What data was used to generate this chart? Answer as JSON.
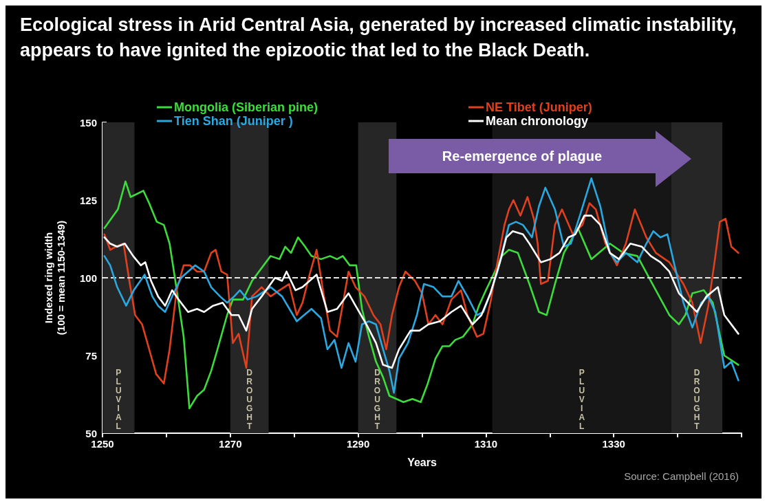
{
  "chart_data": {
    "type": "line",
    "title": "Ecological stress in Arid Central Asia, generated by increased climatic instability, appears to have ignited the epizootic that led to the Black Death.",
    "xlabel": "Years",
    "ylabel": "Indexed ring width\n(100 = mean 1150-1349)",
    "xlim": [
      1250,
      1350
    ],
    "xticks": [
      1250,
      {
        "value": 1260,
        "label": null
      },
      1270,
      {
        "value": 1280,
        "label": null
      },
      1290,
      {
        "value": 1300,
        "label": null
      },
      1310,
      {
        "value": 1320,
        "label": null
      },
      1330,
      {
        "value": 1340,
        "label": null
      },
      {
        "value": 1350,
        "label": null
      }
    ],
    "ylim": [
      50,
      150
    ],
    "yticks": [
      50,
      75,
      100,
      125,
      150
    ],
    "grid": false,
    "legend": "top",
    "series": [
      {
        "name": "Mongolia (Siberian pine)",
        "color": "#3ddc3d",
        "x": [
          1250.3,
          1252.4,
          1253.6,
          1254.4,
          1256.4,
          1257.3,
          1258.5,
          1259.6,
          1260.5,
          1261.4,
          1262.7,
          1263.6,
          1264.8,
          1265.9,
          1267,
          1268,
          1269.5,
          1270.4,
          1272,
          1273.4,
          1276.3,
          1277.7,
          1278.6,
          1279.5,
          1280.6,
          1281.7,
          1282.7,
          1284.2,
          1285.6,
          1286.7,
          1287.6,
          1288.7,
          1289.7,
          1290.6,
          1291.7,
          1292.8,
          1293.9,
          1294.9,
          1296,
          1297.1,
          1298.5,
          1299.8,
          1300.9,
          1302.1,
          1303.2,
          1304.3,
          1305.2,
          1306.4,
          1307.9,
          1308.9,
          1310,
          1311.4,
          1312.5,
          1313.6,
          1315,
          1316.8,
          1318.3,
          1319.5,
          1320.8,
          1322.2,
          1324.4,
          1326.5,
          1329.4,
          1331.5,
          1333.7,
          1335.8,
          1338.7,
          1340.2,
          1341.2,
          1342.3,
          1344.1,
          1345.5,
          1347.3,
          1349.5
        ],
        "values": [
          116,
          122,
          131,
          126,
          128,
          124,
          118,
          117,
          111,
          99,
          81,
          58,
          62,
          64,
          70,
          77,
          88,
          93,
          93,
          99,
          107,
          106,
          110,
          108,
          113,
          110,
          107,
          106,
          107,
          106,
          107,
          104,
          104,
          90,
          81,
          73,
          68,
          62,
          61,
          60,
          61,
          60,
          66,
          74,
          78,
          78,
          80,
          81,
          85,
          91,
          96,
          102,
          107,
          109,
          108,
          98,
          89,
          88,
          98,
          108,
          116,
          106,
          111,
          108,
          107,
          99,
          88,
          85,
          88,
          95,
          96,
          92,
          75,
          72
        ]
      },
      {
        "name": "NE Tibet (Juniper)",
        "color": "#e0401e",
        "x": [
          1250.3,
          1251.2,
          1252.1,
          1253.3,
          1254.2,
          1255.1,
          1256.2,
          1257.3,
          1258.4,
          1259.6,
          1260.5,
          1261.6,
          1262.7,
          1263.7,
          1264.8,
          1265.9,
          1267,
          1267.7,
          1268.6,
          1269.5,
          1270.4,
          1271.3,
          1272.5,
          1273.4,
          1274.9,
          1276.3,
          1277.7,
          1279.2,
          1280.4,
          1281.3,
          1282.4,
          1283.5,
          1284.5,
          1285.6,
          1286.7,
          1288.5,
          1289.6,
          1291,
          1292.4,
          1293.5,
          1294.4,
          1295.3,
          1296.4,
          1297.4,
          1298.9,
          1300,
          1301,
          1302.1,
          1303.2,
          1304.6,
          1306.1,
          1307.1,
          1308.6,
          1309.6,
          1310.7,
          1311.8,
          1312.9,
          1313.6,
          1314.3,
          1315.4,
          1316.5,
          1317.5,
          1318.1,
          1318.6,
          1319.7,
          1320.8,
          1321.9,
          1323.6,
          1325.1,
          1326.2,
          1327.2,
          1328.7,
          1330.5,
          1331.9,
          1333.3,
          1335.1,
          1336.6,
          1338.7,
          1340.9,
          1342.3,
          1343.6,
          1344.8,
          1345.9,
          1346.6,
          1347.5,
          1348.4,
          1349.5
        ],
        "values": [
          114,
          109,
          110,
          111,
          99,
          88,
          85,
          77,
          69,
          66,
          77,
          96,
          104,
          104,
          102,
          102,
          108,
          109,
          102,
          101,
          79,
          82,
          71,
          94,
          97,
          94,
          96,
          98,
          88,
          92,
          101,
          109,
          96,
          83,
          81,
          102,
          97,
          94,
          88,
          85,
          77,
          88,
          97,
          102,
          99,
          95,
          85,
          88,
          85,
          93,
          96,
          88,
          81,
          82,
          92,
          105,
          117,
          122,
          125,
          120,
          126,
          119,
          111,
          98,
          99,
          117,
          122,
          114,
          117,
          124,
          122,
          111,
          104,
          111,
          122,
          113,
          108,
          105,
          98,
          92,
          79,
          91,
          107,
          118,
          119,
          110,
          108
        ]
      },
      {
        "name": "Tien Shan (Juniper )",
        "color": "#2aa8e0",
        "x": [
          1250.3,
          1251.2,
          1252.3,
          1253.7,
          1254.9,
          1256.6,
          1257.8,
          1258.7,
          1259.8,
          1260.9,
          1262.3,
          1264.5,
          1265.9,
          1267,
          1268.4,
          1269.5,
          1270.6,
          1271.5,
          1272.7,
          1274.1,
          1276.3,
          1278.1,
          1280.4,
          1282.7,
          1284.2,
          1285.2,
          1286.3,
          1287.4,
          1288.5,
          1289.6,
          1290.6,
          1291.7,
          1292.8,
          1293.9,
          1294.9,
          1295.6,
          1296.4,
          1297.8,
          1299.2,
          1300.3,
          1301.8,
          1303.2,
          1304.6,
          1305.7,
          1307.1,
          1308.6,
          1309.6,
          1310.7,
          1311.8,
          1313.6,
          1314.7,
          1315.8,
          1317.2,
          1318.3,
          1319.3,
          1320.8,
          1322.2,
          1323.3,
          1324.7,
          1326.5,
          1327.9,
          1329.4,
          1330.5,
          1331.9,
          1333.7,
          1335.1,
          1336.2,
          1337.3,
          1338.4,
          1339.4,
          1340.9,
          1342.3,
          1343.7,
          1344.8,
          1345.9,
          1347.3,
          1348.4,
          1349.5
        ],
        "values": [
          107,
          104,
          97,
          91,
          96,
          101,
          94,
          91,
          89,
          94,
          100,
          104,
          102,
          97,
          94,
          92,
          94,
          96,
          93,
          94,
          97,
          94,
          86,
          90,
          87,
          77,
          80,
          71,
          79,
          73,
          85,
          86,
          85,
          77,
          70,
          63,
          74,
          79,
          88,
          98,
          97,
          94,
          94,
          99,
          94,
          88,
          89,
          95,
          102,
          117,
          118,
          117,
          113,
          123,
          129,
          122,
          110,
          111,
          120,
          132,
          123,
          108,
          105,
          108,
          105,
          111,
          115,
          113,
          114,
          105,
          92,
          84,
          92,
          94,
          89,
          71,
          73,
          67
        ]
      },
      {
        "name": "Mean chronology",
        "color": "#ffffff",
        "x": [
          1250.3,
          1251.2,
          1252.3,
          1253.5,
          1254.8,
          1256,
          1256.7,
          1257.6,
          1258.7,
          1259.8,
          1260.9,
          1261.9,
          1263.4,
          1264.8,
          1265.9,
          1267.3,
          1268.8,
          1270.2,
          1271.3,
          1272.5,
          1273.4,
          1274.9,
          1277,
          1278.1,
          1278.8,
          1280.2,
          1281.3,
          1282.4,
          1283.5,
          1285.2,
          1286.7,
          1288.5,
          1289.6,
          1291.3,
          1292.8,
          1293.9,
          1295.3,
          1296.4,
          1298.2,
          1299.6,
          1301,
          1302.8,
          1304.6,
          1306.1,
          1307.9,
          1309.3,
          1310.7,
          1312.2,
          1313.2,
          1314.2,
          1315.8,
          1316.8,
          1318.6,
          1320.1,
          1321.5,
          1322.9,
          1324,
          1325.4,
          1326.5,
          1327.9,
          1329.4,
          1330.8,
          1332.6,
          1334.4,
          1335.8,
          1337.3,
          1338.7,
          1340.2,
          1341.6,
          1343,
          1344.5,
          1346.3,
          1347.3,
          1349.5
        ],
        "values": [
          113,
          111,
          110,
          111,
          107,
          104,
          105,
          99,
          94,
          91,
          96,
          93,
          89,
          90,
          89,
          91,
          92,
          88,
          88,
          83,
          90,
          94,
          100,
          99,
          102,
          96,
          97,
          99,
          101,
          89,
          90,
          95,
          91,
          85,
          79,
          72,
          71,
          77,
          83,
          83,
          85,
          86,
          89,
          91,
          85,
          88,
          95,
          105,
          113,
          115,
          114,
          111,
          105,
          106,
          108,
          113,
          114,
          120,
          120,
          117,
          108,
          106,
          111,
          110,
          107,
          105,
          102,
          95,
          92,
          89,
          94,
          97,
          88,
          82
        ]
      }
    ],
    "ref_lines": [
      {
        "axis": "y",
        "value": 100,
        "color": "#e6e6e6",
        "line_style": "dashed"
      }
    ],
    "bands": [
      {
        "axis": "x",
        "from": 1250,
        "to": 1255,
        "label": "PLUVIAL",
        "color": "#262626"
      },
      {
        "axis": "x",
        "from": 1270,
        "to": 1276,
        "label": "DROUGHT",
        "color": "#262626"
      },
      {
        "axis": "x",
        "from": 1290,
        "to": 1296,
        "label": "DROUGHT",
        "color": "#262626"
      },
      {
        "axis": "x",
        "from": 1311,
        "to": 1339,
        "label": "PLUVIAL",
        "color": "#161616"
      },
      {
        "axis": "x",
        "from": 1339,
        "to": 1347,
        "label": "DROUGHT",
        "color": "#262626"
      }
    ],
    "annotations": [
      "Re-emergence of plague",
      "Source: Campbell (2016)"
    ]
  }
}
